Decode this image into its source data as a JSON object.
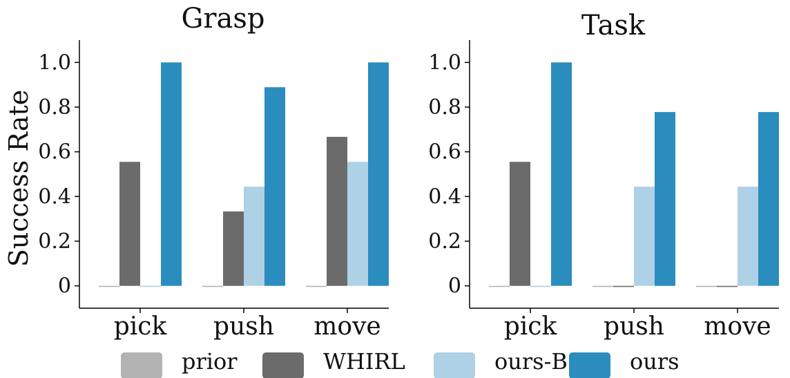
{
  "ylabel": "Success Rate",
  "legend": [
    {
      "label": "prior",
      "color": "#b3b3b3"
    },
    {
      "label": "WHIRL",
      "color": "#6b6b6b"
    },
    {
      "label": "ours-BO",
      "color": "#aed1e6"
    },
    {
      "label": "ours",
      "color": "#2b8cbe"
    }
  ],
  "chart_data": [
    {
      "type": "bar",
      "title": "Grasp",
      "ylabel": "Success Rate",
      "categories": [
        "pick",
        "push",
        "move"
      ],
      "yticks": [
        "0",
        "0.2",
        "0.4",
        "0.6",
        "0.8",
        "1.0"
      ],
      "ylim": [
        -0.1,
        1.1
      ],
      "series": [
        {
          "name": "prior",
          "values": [
            -0.005,
            -0.005,
            -0.005
          ]
        },
        {
          "name": "WHIRL",
          "values": [
            0.555,
            0.333,
            0.667
          ]
        },
        {
          "name": "ours-BO",
          "values": [
            -0.005,
            0.444,
            0.555
          ]
        },
        {
          "name": "ours",
          "values": [
            1.0,
            0.889,
            1.0
          ]
        }
      ]
    },
    {
      "type": "bar",
      "title": "Task",
      "ylabel": "",
      "categories": [
        "pick",
        "push",
        "move"
      ],
      "yticks": [
        "0",
        "0.2",
        "0.4",
        "0.6",
        "0.8",
        "1.0"
      ],
      "ylim": [
        -0.1,
        1.1
      ],
      "series": [
        {
          "name": "prior",
          "values": [
            -0.005,
            -0.005,
            -0.005
          ]
        },
        {
          "name": "WHIRL",
          "values": [
            0.555,
            -0.005,
            -0.005
          ]
        },
        {
          "name": "ours-BO",
          "values": [
            -0.005,
            0.444,
            0.444
          ]
        },
        {
          "name": "ours",
          "values": [
            1.0,
            0.778,
            0.778
          ]
        }
      ]
    }
  ]
}
